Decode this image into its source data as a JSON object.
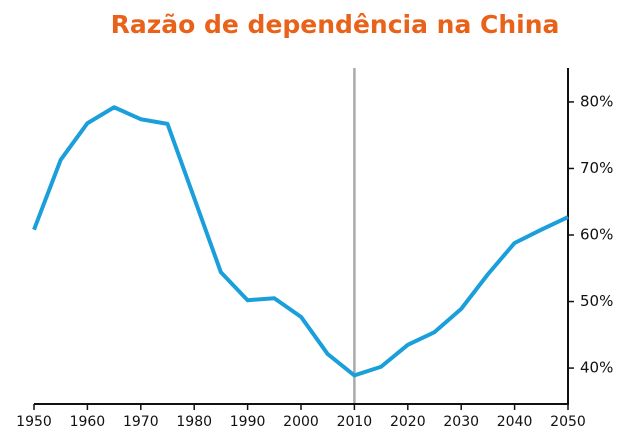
{
  "chart_data": {
    "type": "line",
    "title": "Razão de dependência na China",
    "x": [
      1950,
      1955,
      1960,
      1965,
      1970,
      1975,
      1985,
      1990,
      1995,
      2000,
      2005,
      2010,
      2015,
      2020,
      2025,
      2030,
      2035,
      2040,
      2045,
      2050
    ],
    "series": [
      {
        "name": "Razão de dependência",
        "color": "#1a9fdb",
        "values": [
          60.8,
          71.3,
          76.8,
          79.2,
          77.4,
          76.7,
          54.4,
          50.2,
          50.5,
          47.7,
          42.1,
          38.9,
          40.2,
          43.5,
          45.4,
          48.9,
          54.1,
          58.8,
          60.8,
          62.7
        ]
      }
    ],
    "xlim": [
      1950,
      2050
    ],
    "xticks": [
      1950,
      1960,
      1970,
      1980,
      1990,
      2000,
      2010,
      2020,
      2030,
      2040,
      2050
    ],
    "ylim": [
      34.6,
      85.1
    ],
    "yticks": [
      {
        "value": 40,
        "label": "40%"
      },
      {
        "value": 50,
        "label": "50%"
      },
      {
        "value": 60,
        "label": "60%"
      },
      {
        "value": 70,
        "label": "70%"
      },
      {
        "value": 80,
        "label": "80%"
      }
    ],
    "vline": 2010,
    "vline_color": "#aaaaaa",
    "title_color": "#e8621a"
  }
}
